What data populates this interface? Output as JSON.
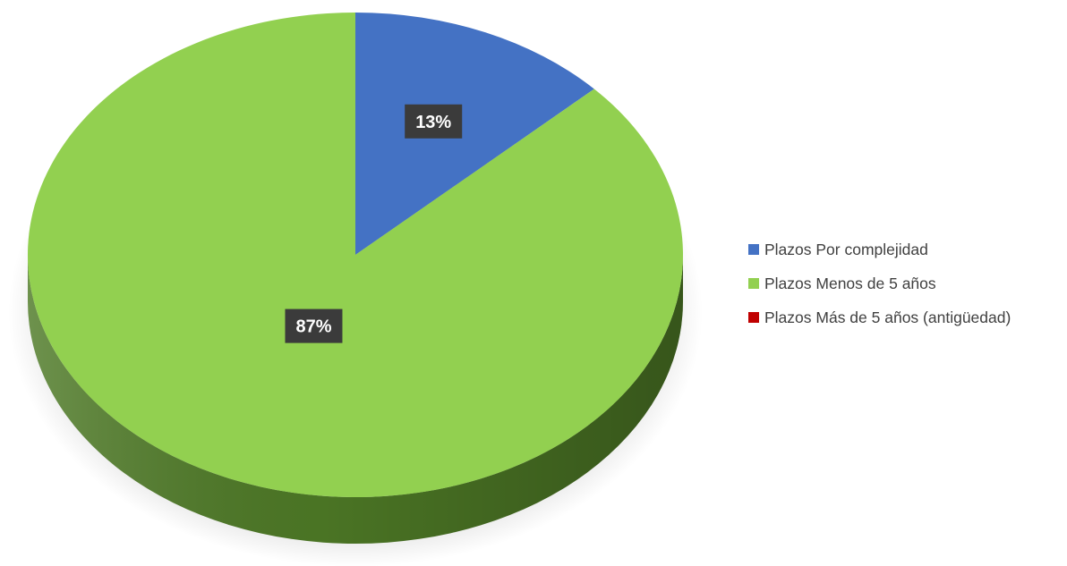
{
  "chart_data": {
    "type": "pie",
    "title": "",
    "categories": [
      "Plazos Por complejidad",
      "Plazos Menos de 5 años",
      "Plazos Más de 5 años (antigüedad)"
    ],
    "values": [
      13,
      87,
      0
    ],
    "value_labels": [
      "13%",
      "87%",
      ""
    ],
    "unit": "%",
    "colors": [
      "#4472c4",
      "#92d050",
      "#c00000"
    ],
    "side_colors": [
      "#2f528f",
      "#4e7a26",
      "#800000"
    ],
    "style": "3d-pie",
    "legend_position": "right"
  }
}
